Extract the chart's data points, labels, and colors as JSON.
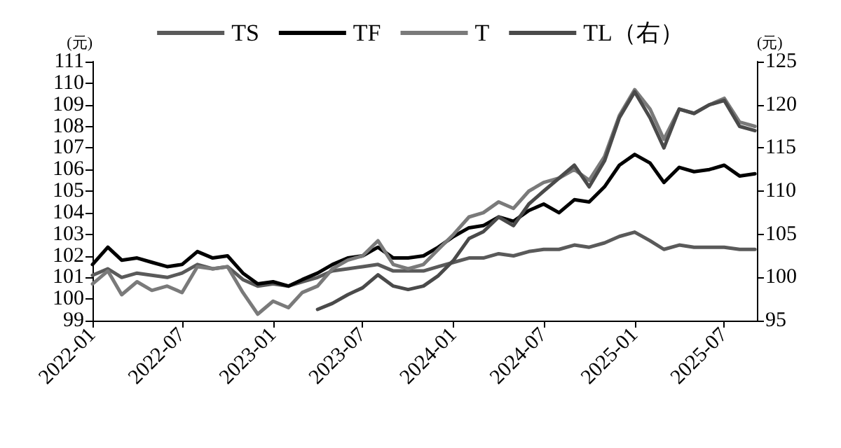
{
  "chart_data": {
    "type": "line",
    "ylabel": "(元)",
    "y2label": "(元)",
    "legend": "top",
    "grid": false,
    "marker": "none",
    "line_style": "solid",
    "xlim": [
      "2022-01-01",
      "2025-09-05"
    ],
    "xticks": [
      "2022-01",
      "2022-07",
      "2023-01",
      "2023-07",
      "2024-01",
      "2024-07",
      "2025-01",
      "2025-07"
    ],
    "ylim": [
      99,
      111
    ],
    "yticks": [
      99,
      100,
      101,
      102,
      103,
      104,
      105,
      106,
      107,
      108,
      109,
      110,
      111
    ],
    "y2lim": [
      95,
      125
    ],
    "y2ticks": [
      95,
      100,
      105,
      110,
      115,
      120,
      125
    ],
    "x": [
      "2022-01",
      "2022-02",
      "2022-03",
      "2022-04",
      "2022-05",
      "2022-06",
      "2022-07",
      "2022-08",
      "2022-09",
      "2022-10",
      "2022-11",
      "2022-12",
      "2023-01",
      "2023-02",
      "2023-03",
      "2023-04",
      "2023-05",
      "2023-06",
      "2023-07",
      "2023-08",
      "2023-09",
      "2023-10",
      "2023-11",
      "2023-12",
      "2024-01",
      "2024-02",
      "2024-03",
      "2024-04",
      "2024-05",
      "2024-06",
      "2024-07",
      "2024-08",
      "2024-09",
      "2024-10",
      "2024-11",
      "2024-12",
      "2025-01",
      "2025-02",
      "2025-03",
      "2025-04",
      "2025-05",
      "2025-06",
      "2025-07",
      "2025-08",
      "2025-09"
    ],
    "series": [
      {
        "name": "TS",
        "color": "#5a5a5a",
        "values": [
          101.1,
          101.4,
          101.0,
          101.2,
          101.1,
          101.0,
          101.2,
          101.6,
          101.4,
          101.5,
          100.9,
          100.6,
          100.7,
          100.6,
          100.8,
          101.0,
          101.3,
          101.4,
          101.5,
          101.6,
          101.3,
          101.3,
          101.3,
          101.5,
          101.7,
          101.9,
          101.9,
          102.1,
          102.0,
          102.2,
          102.3,
          102.3,
          102.5,
          102.4,
          102.6,
          102.9,
          103.1,
          102.7,
          102.3,
          102.5,
          102.4,
          102.4,
          102.4,
          102.3,
          102.3
        ]
      },
      {
        "name": "TF",
        "color": "#000000",
        "values": [
          101.6,
          102.4,
          101.8,
          101.9,
          101.7,
          101.5,
          101.6,
          102.2,
          101.9,
          102.0,
          101.2,
          100.7,
          100.8,
          100.6,
          100.9,
          101.2,
          101.6,
          101.9,
          102.0,
          102.4,
          101.9,
          101.9,
          102.0,
          102.4,
          102.9,
          103.3,
          103.4,
          103.8,
          103.6,
          104.1,
          104.4,
          104.0,
          104.6,
          104.5,
          105.2,
          106.2,
          106.7,
          106.3,
          105.4,
          106.1,
          105.9,
          106.0,
          106.2,
          105.7,
          105.8
        ]
      },
      {
        "name": "T",
        "color": "#7a7a7a",
        "values": [
          100.7,
          101.3,
          100.2,
          100.8,
          100.4,
          100.6,
          100.3,
          101.5,
          101.4,
          101.5,
          100.3,
          99.3,
          99.9,
          99.6,
          100.3,
          100.6,
          101.4,
          101.8,
          102.0,
          102.7,
          101.6,
          101.4,
          101.6,
          102.3,
          103.0,
          103.8,
          104.0,
          104.5,
          104.2,
          105.0,
          105.4,
          105.6,
          106.0,
          105.5,
          106.6,
          108.5,
          109.7,
          108.8,
          107.4,
          108.8,
          108.6,
          109.0,
          109.3,
          108.2,
          108.0
        ]
      },
      {
        "name": "TL（右）",
        "color": "#4a4a4a",
        "axis": "y2",
        "values": [
          null,
          null,
          null,
          null,
          null,
          null,
          null,
          null,
          null,
          null,
          null,
          null,
          null,
          null,
          null,
          96.3,
          97.0,
          98.0,
          98.8,
          100.3,
          99.0,
          98.6,
          99.0,
          100.2,
          102.0,
          104.5,
          105.3,
          107.0,
          106.0,
          108.5,
          110.0,
          111.5,
          113.0,
          110.5,
          113.5,
          118.5,
          121.5,
          118.5,
          115.0,
          119.5,
          119.0,
          120.0,
          120.5,
          117.5,
          117.0
        ]
      }
    ]
  }
}
